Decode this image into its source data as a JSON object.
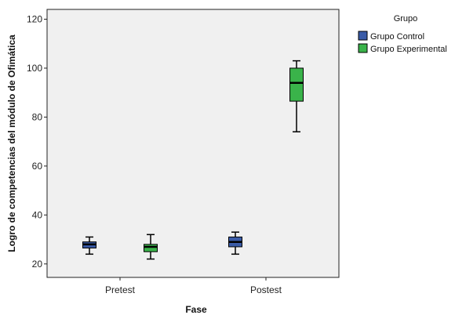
{
  "chart_data": {
    "type": "boxplot",
    "xlabel": "Fase",
    "ylabel": "Logro de competencias del módulo de Ofimática",
    "categories": [
      "Pretest",
      "Postest"
    ],
    "yticks": [
      20,
      40,
      60,
      80,
      100,
      120
    ],
    "ylim": [
      14.5,
      124
    ],
    "grid": false,
    "legend": {
      "title": "Grupo",
      "placement": "right"
    },
    "series": [
      {
        "name": "Grupo Control",
        "color": "#3a5ba7",
        "boxes": [
          {
            "category": "Pretest",
            "min": 24,
            "q1": 26.5,
            "median": 28,
            "q3": 29,
            "max": 31
          },
          {
            "category": "Postest",
            "min": 24,
            "q1": 27,
            "median": 29,
            "q3": 31,
            "max": 33
          }
        ]
      },
      {
        "name": "Grupo Experimental",
        "color": "#3ab34a",
        "boxes": [
          {
            "category": "Pretest",
            "min": 22,
            "q1": 25,
            "median": 27,
            "q3": 28,
            "max": 32
          },
          {
            "category": "Postest",
            "min": 74,
            "q1": 86.5,
            "median": 94,
            "q3": 100,
            "max": 103
          }
        ]
      }
    ]
  }
}
